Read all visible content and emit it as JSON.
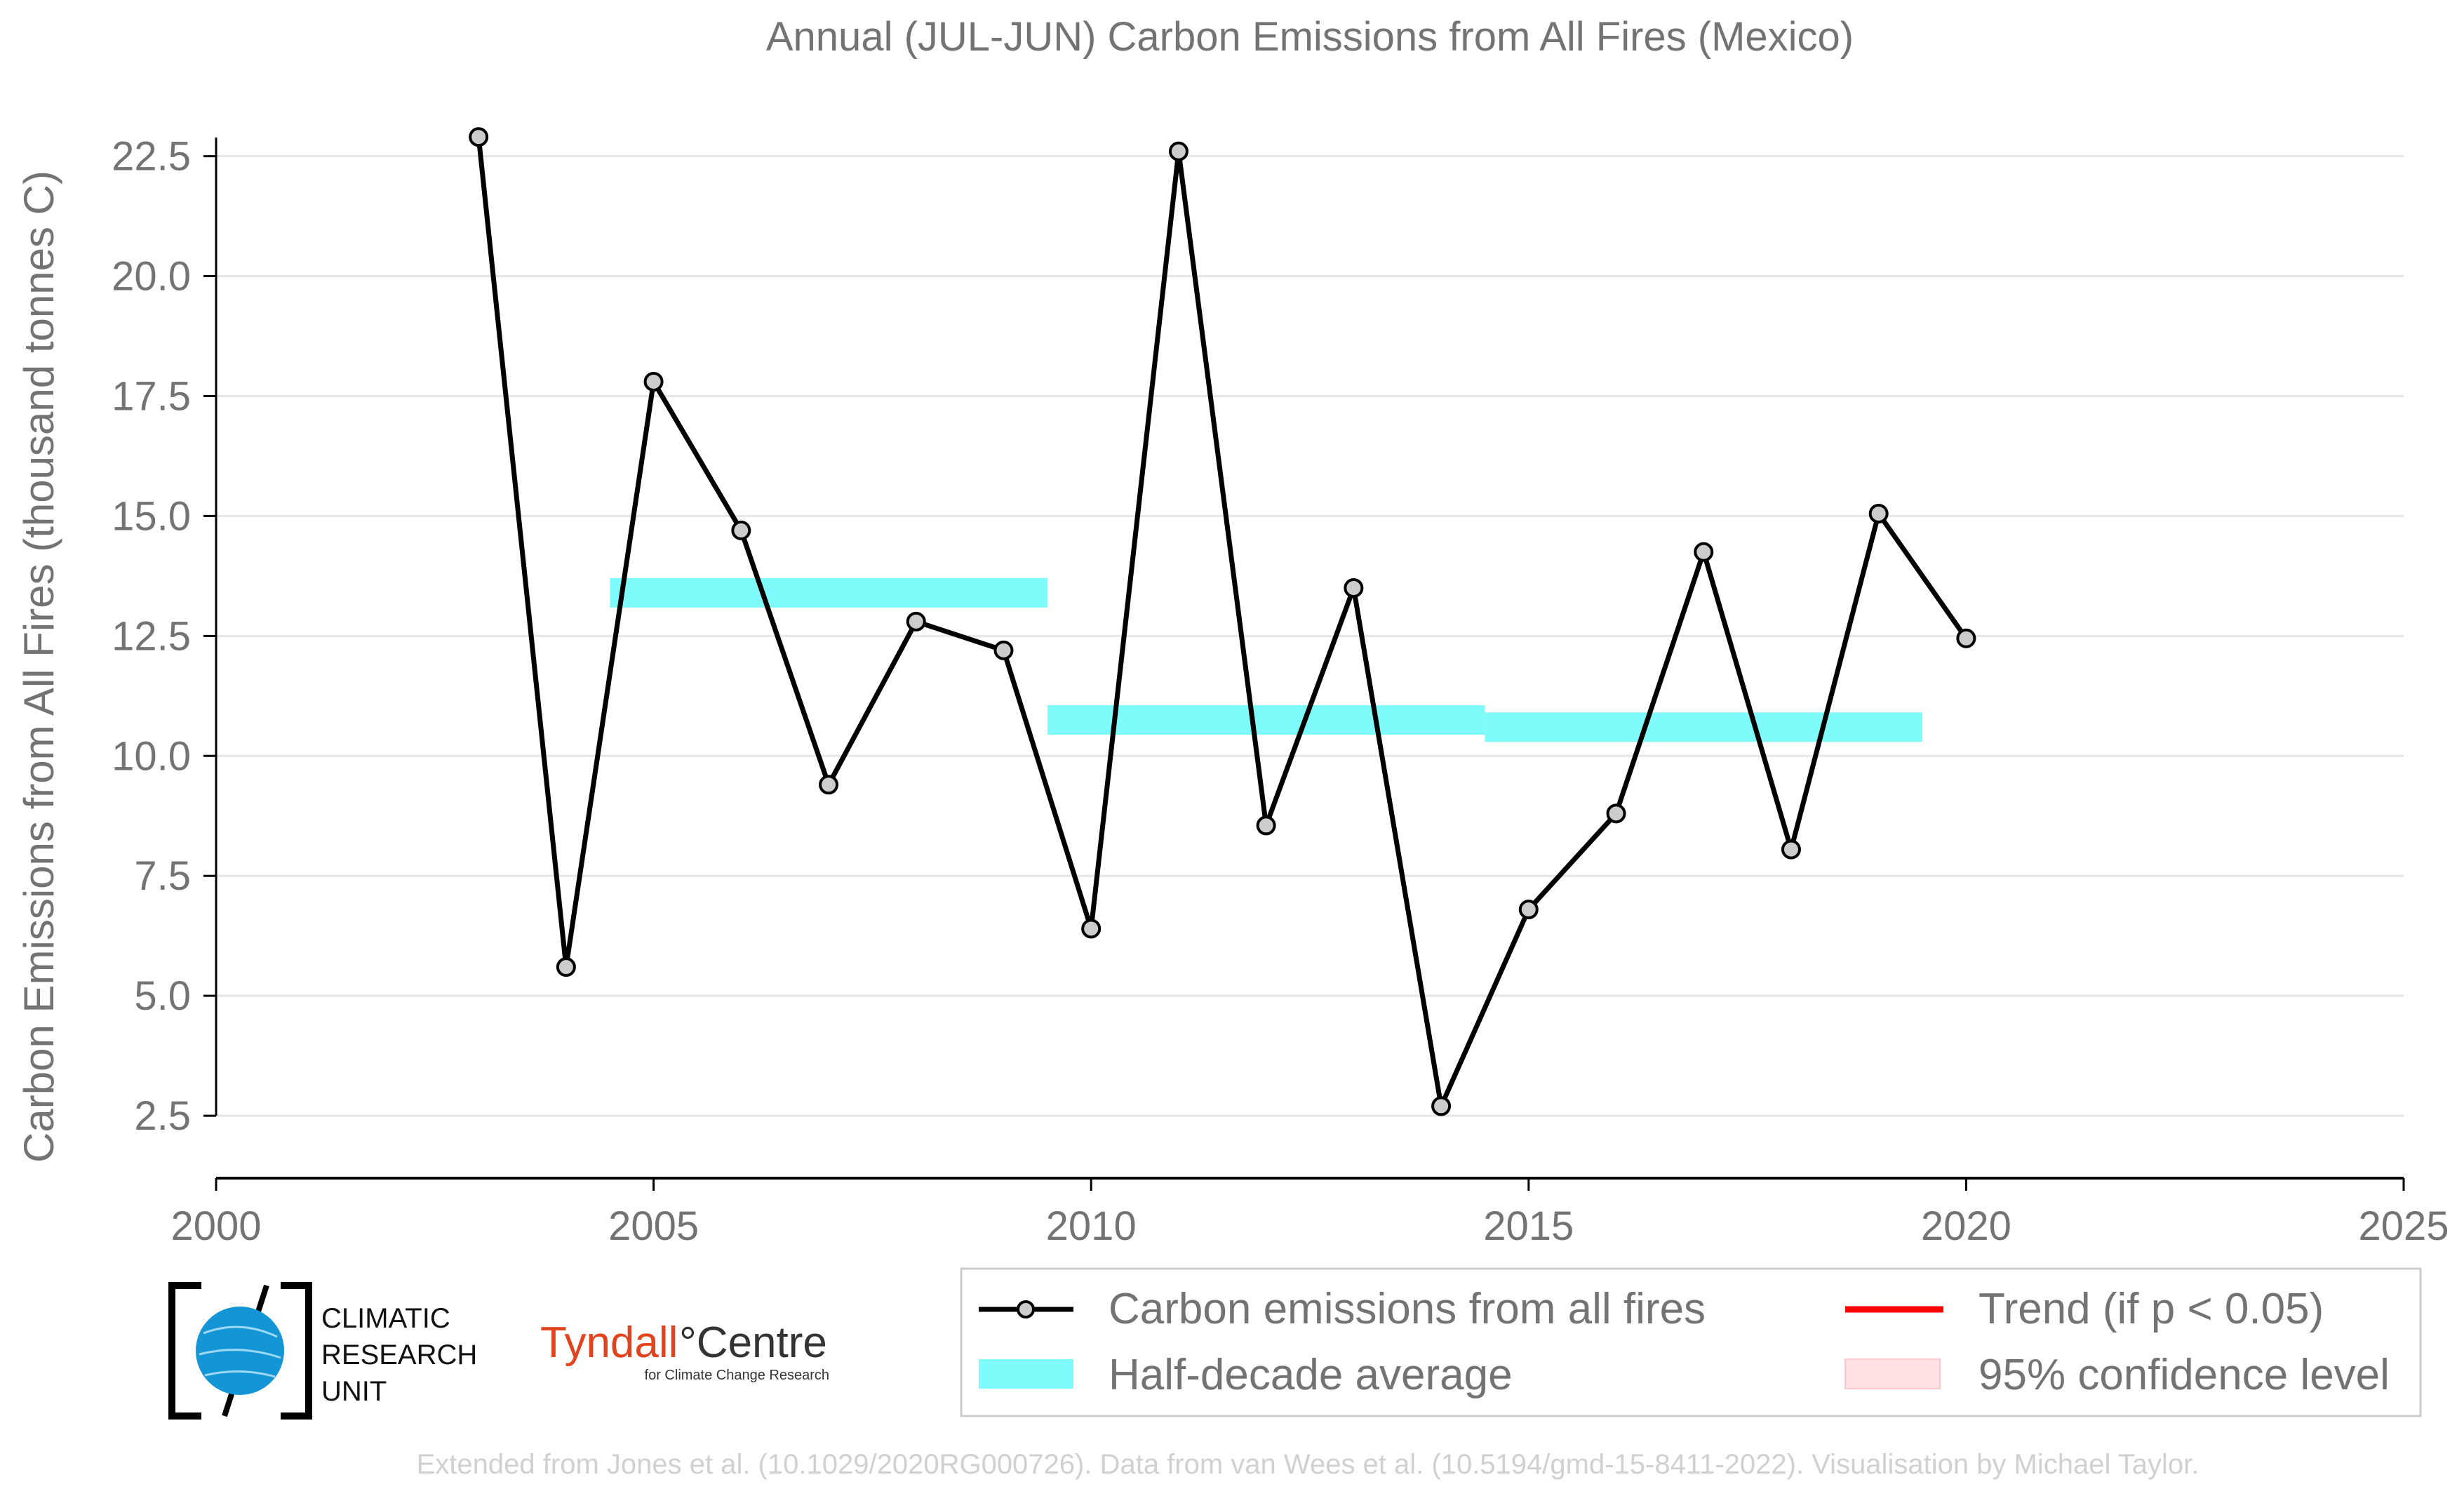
{
  "chart_data": {
    "type": "line",
    "title": "Annual (JUL-JUN) Carbon Emissions from All Fires (Mexico)",
    "xlabel": "",
    "ylabel": "Carbon Emissions from All Fires (thousand tonnes C)",
    "xlim": [
      2000,
      2025
    ],
    "ylim": [
      1.2,
      24.0
    ],
    "x_ticks": [
      "2000",
      "2005",
      "2010",
      "2015",
      "2020",
      "2025"
    ],
    "y_ticks": [
      "2.5",
      "5.0",
      "7.5",
      "10.0",
      "12.5",
      "15.0",
      "17.5",
      "20.0",
      "22.5"
    ],
    "grid": "horizontal",
    "legend_position": "bottom",
    "series": [
      {
        "name": "Carbon emissions from all fires",
        "color": "#000000",
        "marker_color": "#cccccc",
        "x": [
          2003,
          2004,
          2005,
          2006,
          2007,
          2008,
          2009,
          2010,
          2011,
          2012,
          2013,
          2014,
          2015,
          2016,
          2017,
          2018,
          2019,
          2020
        ],
        "y": [
          22.9,
          5.6,
          17.8,
          14.7,
          9.4,
          12.8,
          12.2,
          6.4,
          22.6,
          8.55,
          13.5,
          2.7,
          6.8,
          8.8,
          14.25,
          8.05,
          15.05,
          12.45
        ]
      }
    ],
    "half_decade_average": {
      "name": "Half-decade average",
      "color": "#7ffbfb",
      "segments": [
        {
          "x0": 2004.5,
          "x1": 2009.5,
          "y": 13.4
        },
        {
          "x0": 2009.5,
          "x1": 2014.5,
          "y": 10.75
        },
        {
          "x0": 2014.5,
          "x1": 2019.5,
          "y": 10.6
        }
      ]
    },
    "legend": [
      {
        "label": "Carbon emissions from all fires",
        "type": "line-marker",
        "color": "#000000"
      },
      {
        "label": "Trend (if p < 0.05)",
        "type": "line",
        "color": "#ff0000"
      },
      {
        "label": "Half-decade average",
        "type": "band",
        "color": "#7ffbfb"
      },
      {
        "label": "95% confidence level",
        "type": "band",
        "color": "#ffe0e3"
      }
    ]
  },
  "logos": {
    "cru": [
      "CLIMATIC",
      "RESEARCH",
      "UNIT"
    ],
    "tyndall_main_a": "Tyndall",
    "tyndall_main_b": "°Centre",
    "tyndall_sub": "for Climate Change Research"
  },
  "credit": "Extended from Jones et al. (10.1029/2020RG000726). Data from van Wees et al. (10.5194/gmd-15-8411-2022). Visualisation by Michael Taylor."
}
